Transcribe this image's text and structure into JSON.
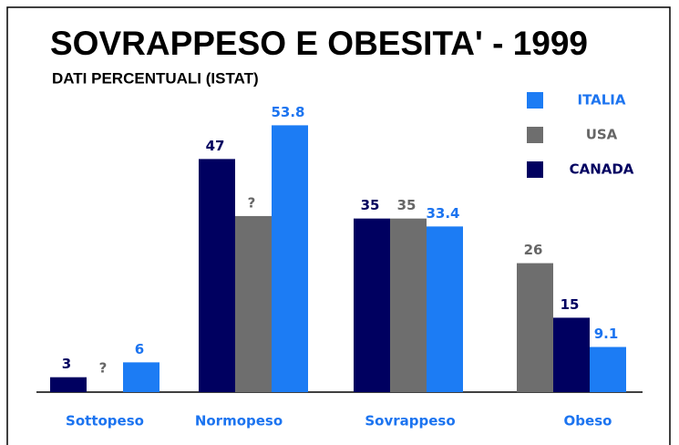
{
  "chart_data": {
    "type": "bar",
    "title": "SOVRAPPESO E OBESITA' - 1999",
    "subtitle": "DATI PERCENTUALI (ISTAT)",
    "categories": [
      "Sottopeso",
      "Normopeso",
      "Sovrappeso",
      "Obeso"
    ],
    "series": [
      {
        "name": "ITALIA",
        "color": "#1c7cf4",
        "values": [
          6,
          53.8,
          33.4,
          9.1
        ]
      },
      {
        "name": "USA",
        "color": "#6e6e6e",
        "values": [
          null,
          35.5,
          35,
          26
        ],
        "value_labels": [
          "?",
          "?",
          "35",
          "26"
        ]
      },
      {
        "name": "CANADA",
        "color": "#000060",
        "values": [
          3,
          47,
          35,
          15
        ]
      }
    ],
    "ylim": [
      0,
      57
    ]
  }
}
